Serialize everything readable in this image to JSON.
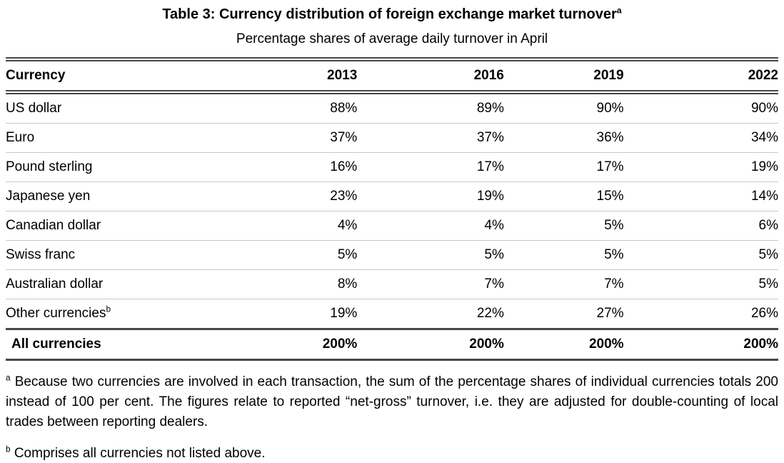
{
  "table": {
    "title": "Table 3: Currency distribution of foreign exchange market turnover",
    "title_marker": "a",
    "subtitle": "Percentage shares of average daily turnover in April",
    "columns": [
      "Currency",
      "2013",
      "2016",
      "2019",
      "2022"
    ],
    "rows": [
      {
        "label": "US dollar",
        "marker": "",
        "values": [
          "88%",
          "89%",
          "90%",
          "90%"
        ]
      },
      {
        "label": "Euro",
        "marker": "",
        "values": [
          "37%",
          "37%",
          "36%",
          "34%"
        ]
      },
      {
        "label": "Pound sterling",
        "marker": "",
        "values": [
          "16%",
          "17%",
          "17%",
          "19%"
        ]
      },
      {
        "label": "Japanese yen",
        "marker": "",
        "values": [
          "23%",
          "19%",
          "15%",
          "14%"
        ]
      },
      {
        "label": "Canadian dollar",
        "marker": "",
        "values": [
          "4%",
          "4%",
          "5%",
          "6%"
        ]
      },
      {
        "label": "Swiss franc",
        "marker": "",
        "values": [
          "5%",
          "5%",
          "5%",
          "5%"
        ]
      },
      {
        "label": "Australian dollar",
        "marker": "",
        "values": [
          "8%",
          "7%",
          "7%",
          "5%"
        ]
      },
      {
        "label": "Other currencies",
        "marker": "b",
        "values": [
          "19%",
          "22%",
          "27%",
          "26%"
        ]
      }
    ],
    "total_row": {
      "label": "All currencies",
      "values": [
        "200%",
        "200%",
        "200%",
        "200%"
      ]
    }
  },
  "footnotes": [
    {
      "marker": "a",
      "text": "Because two currencies are involved in each transaction, the sum of the percentage shares of individual currencies totals 200 instead of 100 per cent. The figures relate to reported “net-gross” turnover, i.e. they are adjusted for double-counting of local trades between reporting dealers."
    },
    {
      "marker": "b",
      "text": "Comprises all currencies not listed above."
    }
  ],
  "colors": {
    "background": "#ffffff",
    "text": "#000000",
    "rule_dark": "#474747",
    "rule_light": "#c8c8c8"
  }
}
